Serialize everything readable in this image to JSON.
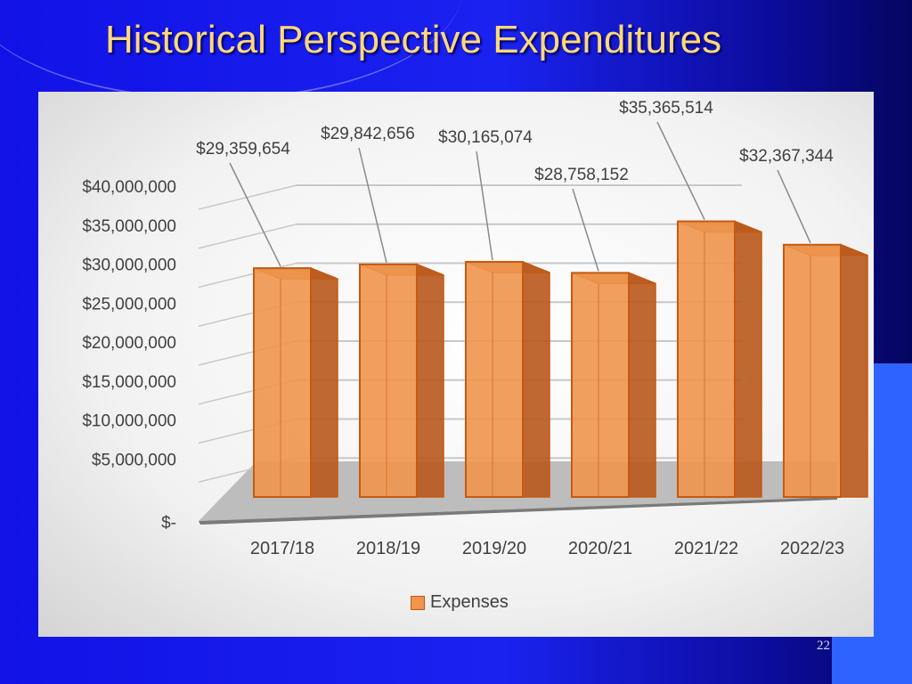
{
  "slide": {
    "title": "Historical Perspective Expenditures",
    "page_number": "22"
  },
  "colors": {
    "bar_front": "#f0954c",
    "bar_side": "#b8581c",
    "bar_edge": "#c55a11",
    "title": "#ffd87a",
    "background": "#1a22f0"
  },
  "chart_data": {
    "type": "bar",
    "style": "3d-column",
    "categories": [
      "2017/18",
      "2018/19",
      "2019/20",
      "2020/21",
      "2021/22",
      "2022/23"
    ],
    "series": [
      {
        "name": "Expenses",
        "values": [
          29359654,
          29842656,
          30165074,
          28758152,
          35365514,
          32367344
        ]
      }
    ],
    "data_labels": [
      "$29,359,654",
      "$29,842,656",
      "$30,165,074",
      "$28,758,152",
      "$35,365,514",
      "$32,367,344"
    ],
    "y_ticks": [
      "$-",
      "$5,000,000",
      "$10,000,000",
      "$15,000,000",
      "$20,000,000",
      "$25,000,000",
      "$30,000,000",
      "$35,000,000",
      "$40,000,000"
    ],
    "ylim": [
      0,
      40000000
    ],
    "grid": true,
    "legend_position": "bottom",
    "title": "",
    "xlabel": "",
    "ylabel": ""
  }
}
